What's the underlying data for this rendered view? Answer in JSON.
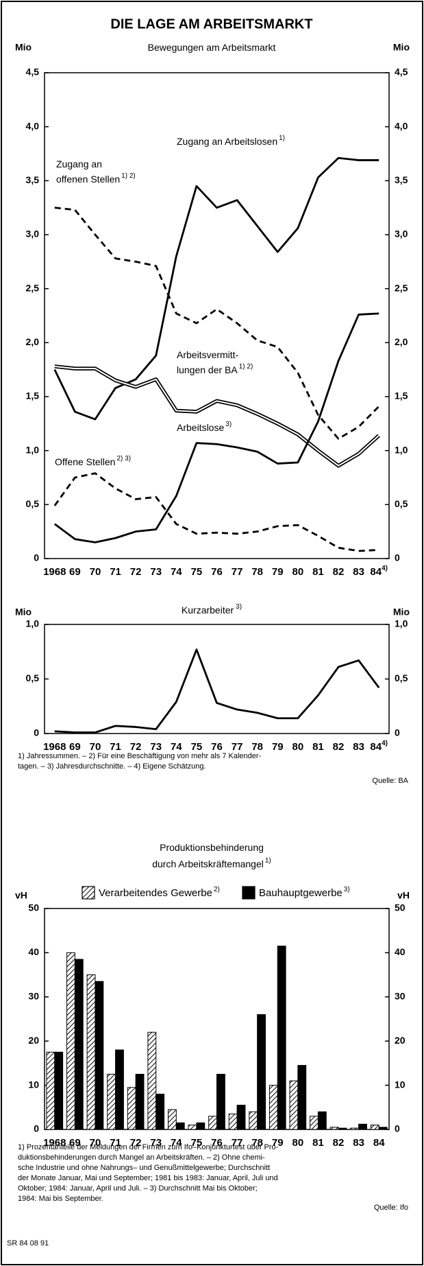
{
  "title": "DIE LAGE AM ARBEITSMARKT",
  "notes1": {
    "lines": [
      "1) Jahressummen. – 2) Für eine Beschäftigung von mehr als 7 Kalender-",
      "tagen. – 3) Jahresdurchschnitte. – 4) Eigene Schätzung."
    ],
    "source": "Quelle: BA"
  },
  "notes2": {
    "lines": [
      "1) Prozentanteile der Meldungen der Firmen zum Ifo–Konjunkturtest über Pro-",
      "duktionsbehinderungen durch Mangel an Arbeitskräften. – 2) Ohne chemi-",
      "sche Industrie und ohne Nahrungs– und Genußmittelgewerbe; Durchschnitt",
      "der Monate Januar, Mai und September; 1981 bis 1983: Januar, April, Juli und",
      "Oktober; 1984: Januar, April und Juli. – 3) Durchschnitt Mai bis Oktober;",
      "1984: Mai bis September."
    ],
    "source": "Quelle: Ifo"
  },
  "code": "SR 84 08 91",
  "chart_data": [
    {
      "type": "line",
      "title": "Bewegungen am Arbeitsmarkt",
      "y_label": "Mio",
      "x_note": "4)",
      "categories": [
        "1968",
        "69",
        "70",
        "71",
        "72",
        "73",
        "74",
        "75",
        "76",
        "77",
        "78",
        "79",
        "80",
        "81",
        "82",
        "83",
        "84"
      ],
      "ylim": [
        0,
        4.5
      ],
      "yticks": [
        0,
        {
          "value": 0.5,
          "label": "0,5"
        },
        {
          "value": 1.0,
          "label": "1,0"
        },
        {
          "value": 1.5,
          "label": "1,5"
        },
        {
          "value": 2.0,
          "label": "2,0"
        },
        {
          "value": 2.5,
          "label": "2,5"
        },
        {
          "value": 3.0,
          "label": "3,0"
        },
        {
          "value": 3.5,
          "label": "3,5"
        },
        {
          "value": 4.0,
          "label": "4,0"
        },
        {
          "value": 4.5,
          "label": "4,5"
        }
      ],
      "series": [
        {
          "name": [
            "Zugang an Arbeitslosen"
          ],
          "note": "1)",
          "color": "#000",
          "style": "solid",
          "values": [
            1.75,
            1.36,
            1.29,
            1.58,
            1.66,
            1.88,
            2.8,
            3.45,
            3.25,
            3.32,
            3.08,
            2.84,
            3.06,
            3.53,
            3.71,
            3.69,
            3.69
          ]
        },
        {
          "name": [
            "Zugang an",
            "offenen Stellen"
          ],
          "note": "1) 2)",
          "color": "#000",
          "style": "dashed",
          "values": [
            3.25,
            3.23,
            3.0,
            2.78,
            2.75,
            2.71,
            2.27,
            2.18,
            2.31,
            2.18,
            2.02,
            1.96,
            1.72,
            1.33,
            1.11,
            1.22,
            1.41
          ]
        },
        {
          "name": [
            "Arbeitsvermitt-",
            "lungen der BA"
          ],
          "note": "1) 2)",
          "color": "#000",
          "style": "double",
          "values": [
            1.78,
            1.76,
            1.76,
            1.65,
            1.59,
            1.66,
            1.37,
            1.36,
            1.46,
            1.42,
            1.34,
            1.25,
            1.15,
            1.0,
            0.86,
            0.97,
            1.14
          ]
        },
        {
          "name": [
            "Arbeitslose"
          ],
          "note": "3)",
          "color": "#000",
          "style": "solid",
          "values": [
            0.32,
            0.18,
            0.15,
            0.19,
            0.25,
            0.27,
            0.58,
            1.07,
            1.06,
            1.03,
            0.99,
            0.88,
            0.89,
            1.27,
            1.83,
            2.26,
            2.27
          ]
        },
        {
          "name": [
            "Offene Stellen"
          ],
          "note": "2) 3)",
          "color": "#000",
          "style": "dashed",
          "values": [
            0.49,
            0.75,
            0.79,
            0.65,
            0.55,
            0.57,
            0.32,
            0.23,
            0.24,
            0.23,
            0.25,
            0.3,
            0.31,
            0.21,
            0.1,
            0.07,
            0.08
          ]
        }
      ]
    },
    {
      "type": "line",
      "title": "Kurzarbeiter",
      "title_note": "3)",
      "y_label": "Mio",
      "x_note": "4)",
      "categories": [
        "1968",
        "69",
        "70",
        "71",
        "72",
        "73",
        "74",
        "75",
        "76",
        "77",
        "78",
        "79",
        "80",
        "81",
        "82",
        "83",
        "84"
      ],
      "ylim": [
        0,
        1.0
      ],
      "yticks": [
        0,
        {
          "value": 0.5,
          "label": "0,5"
        },
        {
          "value": 1.0,
          "label": "1,0"
        }
      ],
      "series": [
        {
          "color": "#000",
          "style": "solid",
          "values": [
            0.02,
            0.01,
            0.01,
            0.07,
            0.06,
            0.04,
            0.29,
            0.77,
            0.28,
            0.22,
            0.19,
            0.14,
            0.14,
            0.35,
            0.61,
            0.67,
            0.42
          ]
        }
      ]
    },
    {
      "type": "bar",
      "title": [
        "Produktionsbehinderung",
        "durch Arbeitskräftemangel"
      ],
      "title_note": "1)",
      "y_label": "vH",
      "categories": [
        "1968",
        "69",
        "70",
        "71",
        "72",
        "73",
        "74",
        "75",
        "76",
        "77",
        "78",
        "79",
        "80",
        "81",
        "82",
        "83",
        "84"
      ],
      "ylim": [
        0,
        50
      ],
      "yticks": [
        0,
        10,
        20,
        30,
        40,
        50
      ],
      "series": [
        {
          "name": "Verarbeitendes Gewerbe",
          "note": "2)",
          "color": "hatch",
          "values": [
            17.5,
            40,
            35,
            12.5,
            9.5,
            22,
            4.5,
            1,
            3,
            3.5,
            4,
            10,
            11,
            3,
            0.5,
            0.3,
            1
          ]
        },
        {
          "name": "Bauhauptgewerbe",
          "note": "3)",
          "color": "#000",
          "values": [
            17.5,
            38.5,
            33.5,
            18,
            12.5,
            8,
            1.5,
            1.5,
            12.5,
            5.5,
            26,
            41.5,
            14.5,
            4,
            0.3,
            1.2,
            0.5
          ]
        }
      ]
    }
  ]
}
